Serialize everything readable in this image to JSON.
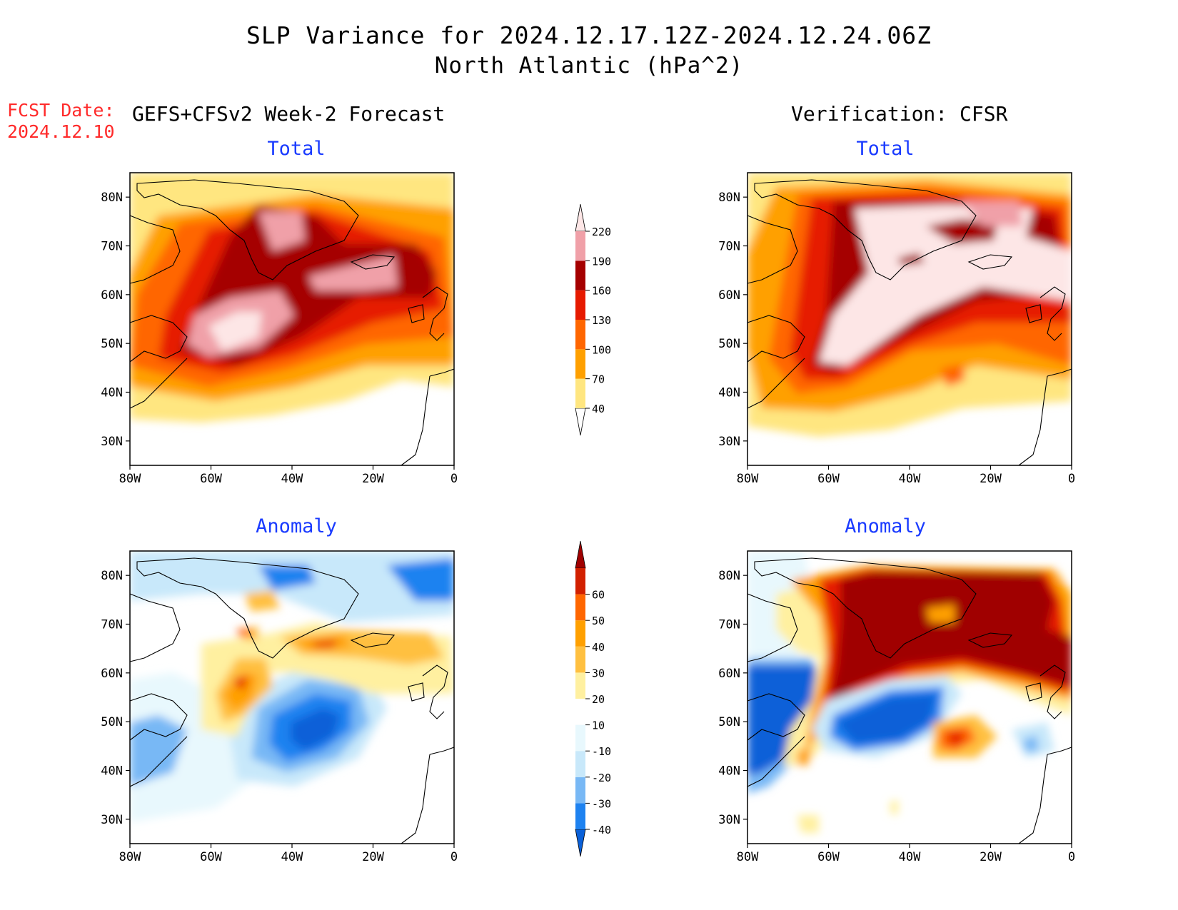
{
  "header": {
    "title_line1": "SLP Variance for 2024.12.17.12Z-2024.12.24.06Z",
    "title_line2": "North Atlantic (hPa^2)",
    "fcst_label": "FCST Date:",
    "fcst_date": "2024.12.10",
    "left_heading": "GEFS+CFSv2 Week-2 Forecast",
    "right_heading": "Verification: CFSR"
  },
  "panels": {
    "fc_total": {
      "title": "Total"
    },
    "ver_total": {
      "title": "Total"
    },
    "fc_anom": {
      "title": "Anomaly"
    },
    "ver_anom": {
      "title": "Anomaly"
    }
  },
  "axes": {
    "lat_labels": [
      "80N",
      "70N",
      "60N",
      "50N",
      "40N",
      "30N"
    ],
    "lon_labels": [
      "80W",
      "60W",
      "40W",
      "20W",
      "0"
    ],
    "lat_range": [
      25,
      85
    ],
    "lon_range": [
      -80,
      0
    ]
  },
  "colorbars": {
    "total": {
      "levels": [
        "40",
        "70",
        "100",
        "130",
        "160",
        "190",
        "220"
      ],
      "colors": [
        "#ffffff",
        "#ffe680",
        "#ffa000",
        "#ff6600",
        "#e61a00",
        "#a50000",
        "#f0a0a8",
        "#fde6e6"
      ]
    },
    "anomaly": {
      "levels": [
        "-40",
        "-30",
        "-20",
        "-10",
        "10",
        "20",
        "30",
        "40",
        "50",
        "60"
      ],
      "colors": [
        "#0a60d8",
        "#1e82f0",
        "#78b8f5",
        "#c8e8fa",
        "#e8f8fd",
        "#ffffff",
        "#fff0a0",
        "#ffc040",
        "#ffa000",
        "#ff6600",
        "#d22000",
        "#a00000"
      ]
    }
  }
}
